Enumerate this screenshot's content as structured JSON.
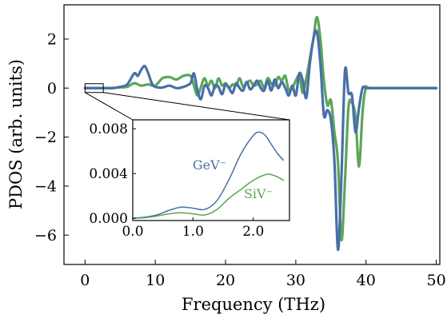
{
  "chart_data": [
    {
      "type": "line",
      "xlabel": "Frequency (THz)",
      "ylabel": "PDOS (arb. units)",
      "xlim": [
        -3,
        50.5
      ],
      "ylim": [
        -7.2,
        3.4
      ],
      "xticks": [
        0,
        10,
        20,
        30,
        40,
        50
      ],
      "yticks": [
        -6,
        -4,
        -2,
        0,
        2
      ],
      "xtick_labels": [
        "0",
        "10",
        "20",
        "30",
        "40",
        "50"
      ],
      "ytick_labels": [
        "−6",
        "−4",
        "−2",
        "0",
        "2"
      ],
      "grid": false,
      "colors": {
        "ge": "#4a6fa8",
        "si": "#5aa65a"
      },
      "series": [
        {
          "id": "si",
          "color": "#5aa65a",
          "x": [
            0,
            2,
            4,
            5,
            6,
            7,
            8,
            9,
            10,
            11,
            12,
            13,
            14,
            15,
            15.5,
            16,
            16.5,
            17,
            17.5,
            18,
            18.5,
            19,
            19.5,
            20,
            20.5,
            21,
            21.5,
            22,
            22.5,
            23,
            23.5,
            24,
            24.5,
            25,
            25.5,
            26,
            26.5,
            27,
            27.5,
            28,
            28.5,
            29,
            29.5,
            30,
            30.5,
            31,
            31.5,
            32,
            32.5,
            33,
            33.5,
            34,
            34.5,
            35,
            35.5,
            36,
            36.5,
            37,
            37.5,
            38,
            38.5,
            39,
            39.5,
            40,
            41,
            50
          ],
          "values": [
            0,
            0,
            0.01,
            0.03,
            0.05,
            0.2,
            0.1,
            0.15,
            0.1,
            0.4,
            0.45,
            0.35,
            0.5,
            0.5,
            0.1,
            -0.3,
            0.05,
            0.4,
            0.1,
            0.3,
            0.0,
            0.4,
            0.1,
            0.2,
            0.0,
            0.15,
            0.1,
            0.4,
            0.05,
            0.2,
            0.3,
            0.1,
            0.15,
            0.3,
            0.0,
            0.4,
            0.2,
            0.1,
            0.45,
            0.3,
            0.5,
            -0.1,
            0.0,
            0.3,
            0.5,
            -0.2,
            0.4,
            1.2,
            2.0,
            2.9,
            2.0,
            0.3,
            -0.7,
            -0.5,
            -1.8,
            -3.0,
            -6.2,
            -3.8,
            -0.8,
            -0.6,
            -1.2,
            -3.2,
            -1.0,
            0,
            0,
            0
          ]
        },
        {
          "id": "ge",
          "color": "#4a6fa8",
          "x": [
            0,
            2,
            4,
            5,
            6,
            7,
            7.5,
            8,
            8.5,
            9,
            9.5,
            10,
            11,
            12,
            13,
            14,
            15,
            15.5,
            16,
            16.5,
            17,
            17.5,
            18,
            18.5,
            19,
            19.5,
            20,
            20.5,
            21,
            21.5,
            22,
            22.5,
            23,
            23.5,
            24,
            24.5,
            25,
            25.5,
            26,
            26.5,
            27,
            27.5,
            28,
            28.5,
            29,
            29.5,
            30,
            30.5,
            31,
            31.5,
            32,
            32.5,
            33,
            33.5,
            34,
            34.5,
            35,
            35.5,
            36,
            36.5,
            37,
            37.5,
            38,
            38.5,
            39,
            39.5,
            40,
            41,
            50
          ],
          "values": [
            0,
            0,
            0,
            0.05,
            0.15,
            0.6,
            0.5,
            0.75,
            0.9,
            0.6,
            0.2,
            0.05,
            0.02,
            0.1,
            0.0,
            0.05,
            0.2,
            0.6,
            -0.1,
            -0.45,
            0.1,
            0.0,
            -0.3,
            0.1,
            0.05,
            -0.25,
            0.15,
            0.0,
            -0.2,
            0.2,
            0.0,
            -0.1,
            0.25,
            -0.05,
            0.1,
            0.3,
            0.0,
            -0.1,
            0.3,
            -0.1,
            0.35,
            0.0,
            0.25,
            0.0,
            -0.3,
            0.1,
            -0.3,
            0.6,
            0.3,
            -0.4,
            1.0,
            2.0,
            2.3,
            1.0,
            -1.1,
            -0.9,
            -1.3,
            -3.0,
            -6.6,
            -3.6,
            0.7,
            -0.2,
            -0.3,
            -1.8,
            -0.8,
            0,
            0,
            0,
            0
          ]
        }
      ]
    },
    {
      "type": "line",
      "xlim": [
        0,
        2.6
      ],
      "ylim": [
        -0.0002,
        0.0088
      ],
      "xticks": [
        0,
        1,
        2
      ],
      "yticks": [
        0,
        0.004,
        0.008
      ],
      "xtick_labels": [
        "0.0",
        "1.0",
        "2.0"
      ],
      "ytick_labels": [
        "0.000",
        "0.004",
        "0.008"
      ],
      "grid": false,
      "series": [
        {
          "id": "ge",
          "name": "GeV⁻",
          "color": "#4a6fa8",
          "x": [
            0.0,
            0.2,
            0.4,
            0.6,
            0.8,
            1.0,
            1.2,
            1.4,
            1.6,
            1.8,
            2.0,
            2.1,
            2.2,
            2.3,
            2.4,
            2.5
          ],
          "values": [
            0.0,
            0.0001,
            0.0003,
            0.0007,
            0.001,
            0.0009,
            0.0008,
            0.0016,
            0.0035,
            0.0058,
            0.0074,
            0.0077,
            0.0074,
            0.0066,
            0.0058,
            0.0052
          ]
        },
        {
          "id": "si",
          "name": "SiV⁻",
          "color": "#5aa65a",
          "x": [
            0.0,
            0.2,
            0.4,
            0.6,
            0.8,
            1.0,
            1.2,
            1.4,
            1.6,
            1.8,
            2.0,
            2.2,
            2.3,
            2.4,
            2.5
          ],
          "values": [
            0.0,
            5e-05,
            0.0002,
            0.0004,
            0.0005,
            0.0004,
            0.0003,
            0.0008,
            0.0018,
            0.0026,
            0.0034,
            0.0039,
            0.0039,
            0.0037,
            0.0034
          ]
        }
      ]
    }
  ]
}
